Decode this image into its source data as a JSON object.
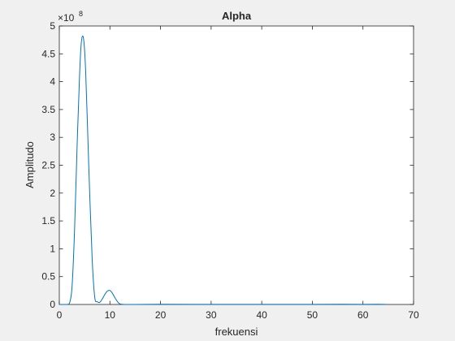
{
  "chart_data": {
    "type": "line",
    "title": "Alpha",
    "xlabel": "frekuensi",
    "ylabel": "Amplitudo",
    "xlim": [
      0,
      70
    ],
    "ylim": [
      0,
      5
    ],
    "xticks": [
      "0",
      "10",
      "20",
      "30",
      "40",
      "50",
      "60",
      "70"
    ],
    "yticks": [
      "0",
      "0.5",
      "1",
      "1.5",
      "2",
      "2.5",
      "3",
      "3.5",
      "4",
      "4.5",
      "5"
    ],
    "y_exponent_label": "×10",
    "y_exponent_power": "8",
    "grid": false,
    "line_color": "#0072bd",
    "series": [
      {
        "x": [
          0,
          1.5,
          2.0,
          2.5,
          3.0,
          3.5,
          4.0,
          4.3,
          4.6,
          4.9,
          5.2,
          5.5,
          6.0,
          6.5,
          7.0,
          7.5,
          8.0,
          8.5,
          9.0,
          9.5,
          10.0,
          10.5,
          11.0,
          11.5,
          12.0,
          13.0,
          15.0,
          20.0,
          30.0,
          40.0,
          50.0,
          56.0,
          60.0,
          63.0,
          64.5
        ],
        "y": [
          0,
          0,
          0.02,
          0.3,
          1.3,
          2.8,
          4.1,
          4.65,
          4.82,
          4.68,
          4.2,
          3.4,
          2.0,
          0.8,
          0.13,
          0.05,
          0.04,
          0.1,
          0.18,
          0.24,
          0.25,
          0.2,
          0.12,
          0.05,
          0.01,
          0,
          0,
          0.003,
          0.002,
          0.001,
          0.002,
          0.003,
          0.002,
          0.003,
          0.002
        ]
      }
    ]
  }
}
